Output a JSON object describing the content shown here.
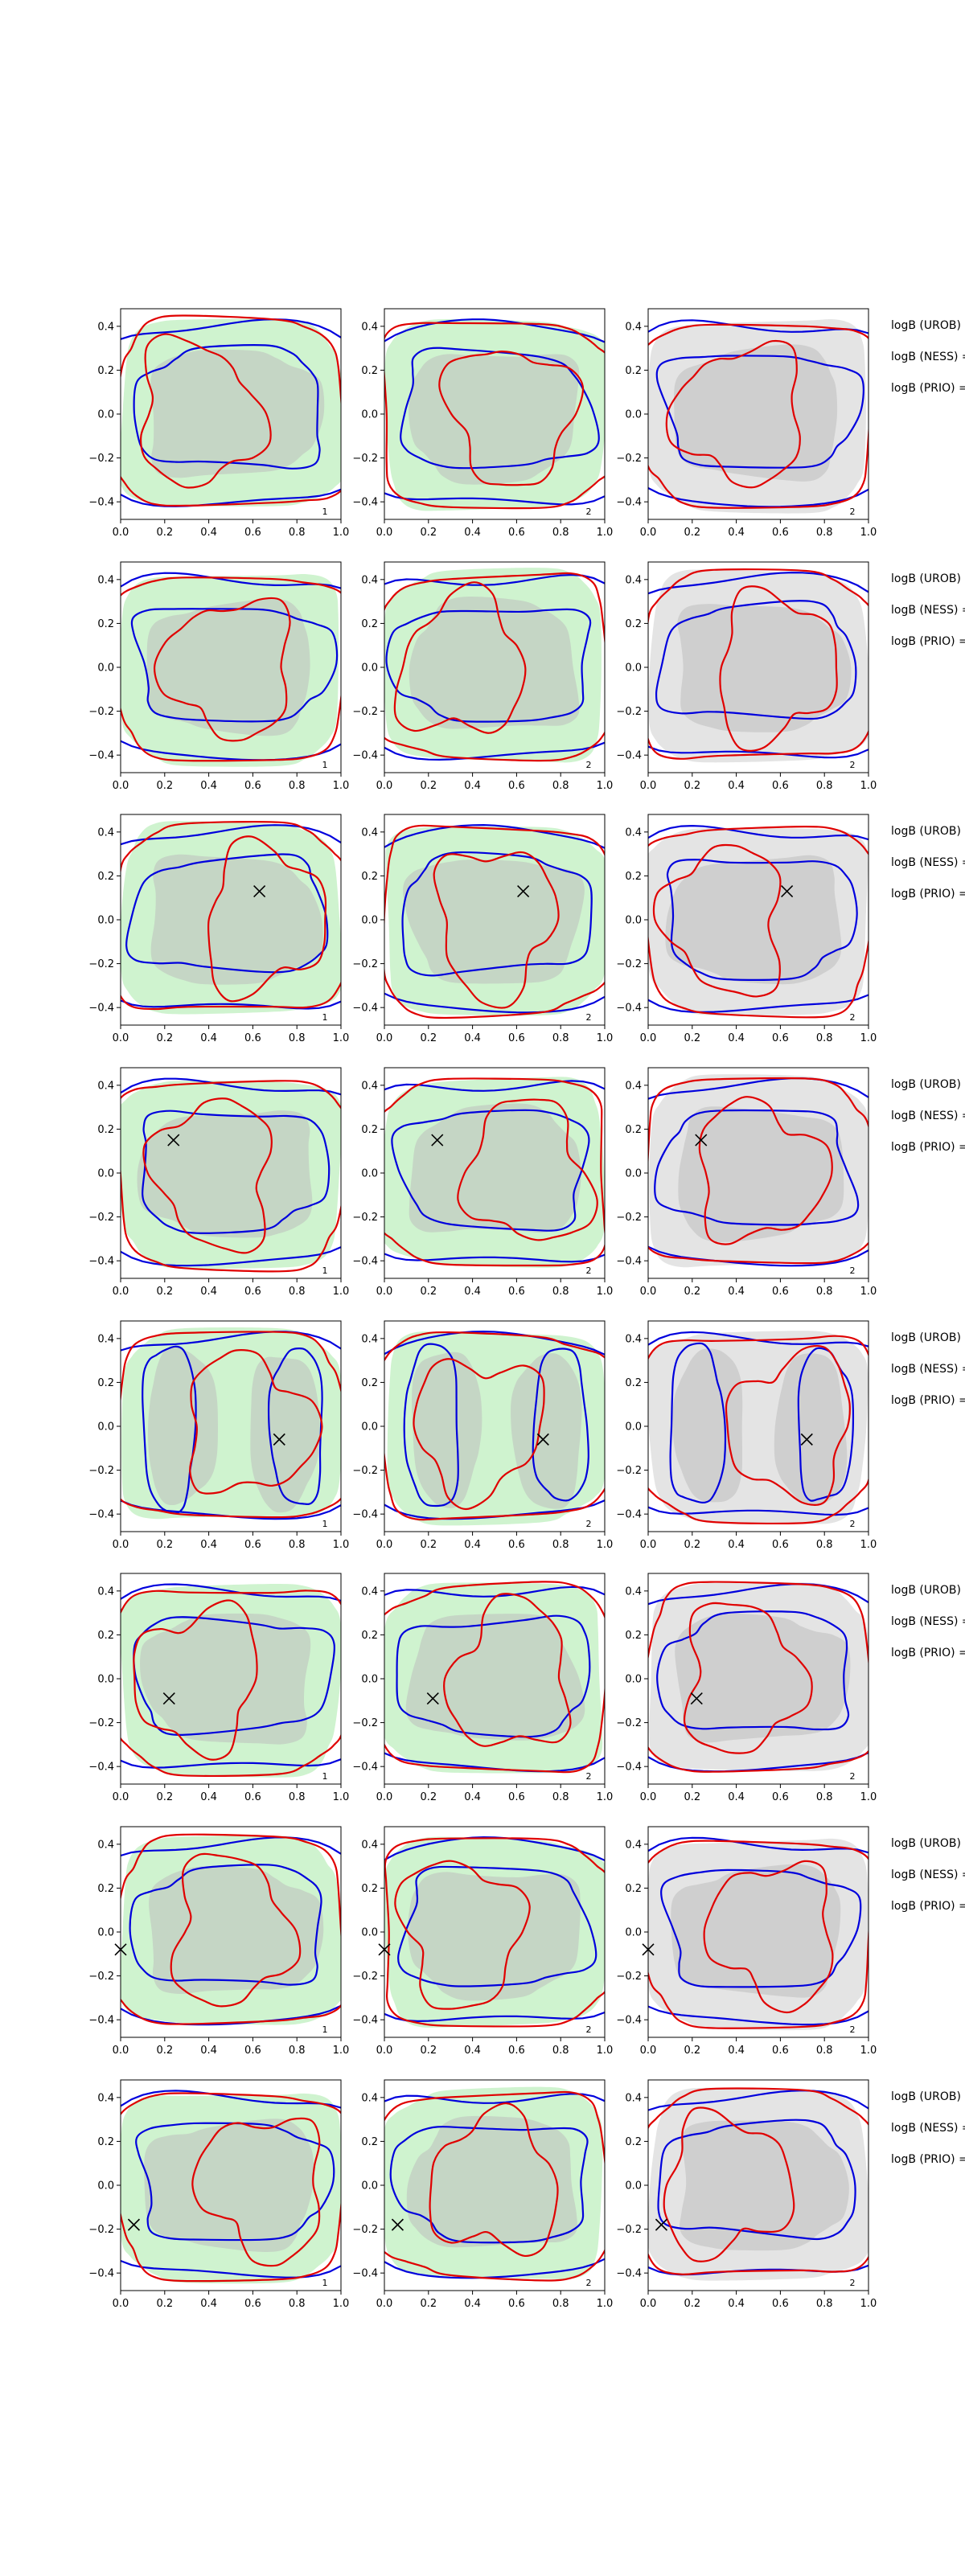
{
  "figure": {
    "colors": {
      "prior_fill": "#bdbdbd",
      "green_fill": "#b6ecb6",
      "gray_fill": "#d9d9d9",
      "blue_line": "#0000dd",
      "red_line": "#e00000",
      "marker": "#000000"
    },
    "panel_ids": [
      "1",
      "2",
      "2"
    ],
    "legend_labels": [
      "logB (UROB) =",
      "logB (NESS) =",
      "logB (PRIO) ="
    ]
  },
  "chart_data": {
    "type": "contour-grid",
    "rows": 8,
    "cols": 3,
    "xlim": [
      0.0,
      1.0
    ],
    "ylim": [
      -0.48,
      0.48
    ],
    "xticks": [
      0.0,
      0.2,
      0.4,
      0.6,
      0.8,
      1.0
    ],
    "yticks": [
      0.4,
      0.2,
      0.0,
      -0.2,
      -0.4
    ],
    "xtick_labels": [
      "0.0",
      "0.2",
      "0.4",
      "0.6",
      "0.8",
      "1.0"
    ],
    "ytick_labels": [
      "0.4",
      "0.2",
      "0.0",
      "−0.2",
      "−0.4"
    ],
    "markers": [
      null,
      null,
      [
        0.63,
        0.13
      ],
      [
        0.24,
        0.15
      ],
      [
        0.72,
        -0.06
      ],
      [
        0.22,
        -0.09
      ],
      [
        0.0,
        -0.08
      ],
      [
        0.06,
        -0.18
      ]
    ]
  }
}
